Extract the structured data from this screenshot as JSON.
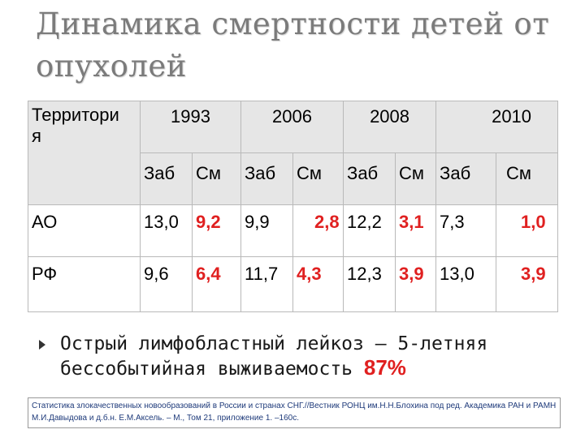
{
  "title": "Динамика смертности детей от опухолей",
  "table": {
    "territory_header": "Территори я",
    "years": [
      "1993",
      "2006",
      "2008",
      "2010"
    ],
    "sub": {
      "zab": "Заб",
      "sm": "См"
    },
    "rows": [
      {
        "name": "АО",
        "y1993": [
          "13,0",
          "9,2"
        ],
        "y2006": [
          "9,9",
          "2,8"
        ],
        "y2008": [
          "12,2",
          "3,1"
        ],
        "y2010": [
          "7,3",
          "1,0"
        ]
      },
      {
        "name": "РФ",
        "y1993": [
          "9,6",
          "6,4"
        ],
        "y2006": [
          "11,7",
          "4,3"
        ],
        "y2008": [
          "12,3",
          "3,9"
        ],
        "y2010": [
          "13,0",
          "3,9"
        ]
      }
    ]
  },
  "bullet": {
    "text": "Острый лимфобластный лейкоз – 5-летняя бессобытийная выживаемость",
    "value": "87%"
  },
  "source": "Статистика злокачественных новообразований в России и странах СНГ.//Вестник РОНЦ им.Н.Н.Блохина под ред. Академика РАН и РАМН М.И.Давыдова и д.б.н. Е.М.Аксель. – М., Том 21, приложение 1. –160с.",
  "colors": {
    "accent": "#e02020",
    "header_bg": "#e6e6e6",
    "title": "#7b7b7b"
  }
}
